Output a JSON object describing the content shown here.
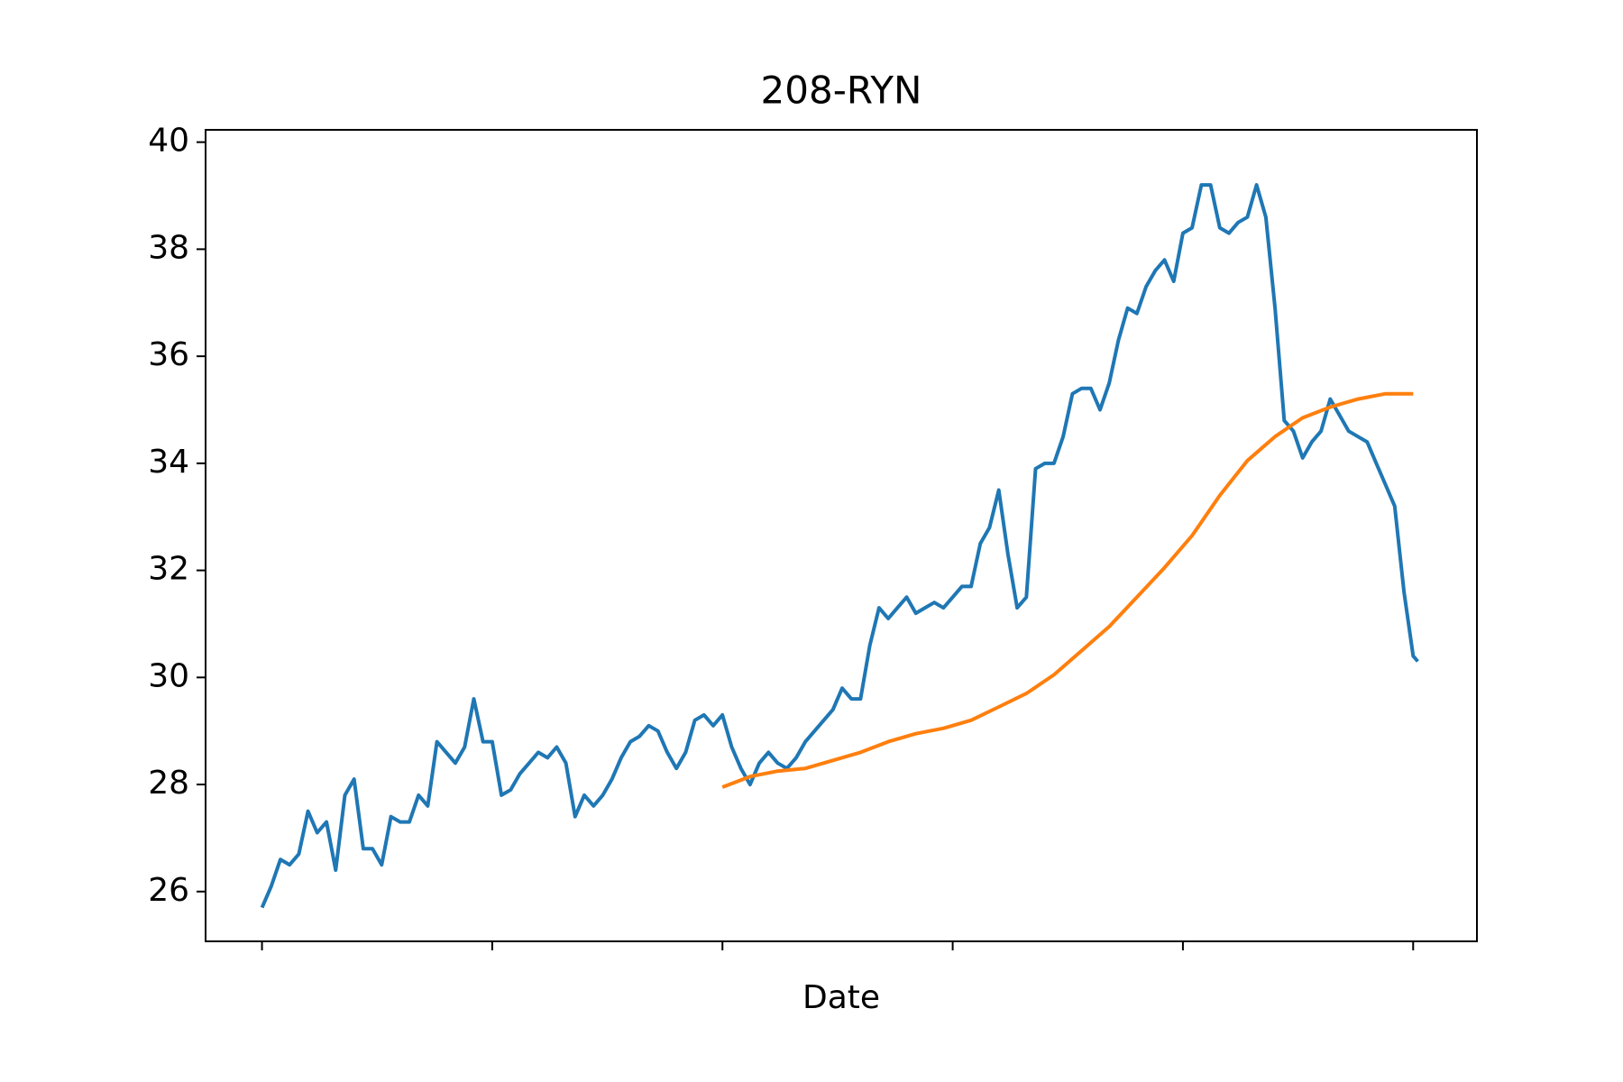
{
  "chart_data": {
    "type": "line",
    "title": "208-RYN",
    "x_label": "Date",
    "xlim": [
      -24.5,
      527.7
    ],
    "xticks": [
      0,
      100,
      200,
      300,
      400,
      500
    ],
    "ylim": [
      25.07,
      40.23
    ],
    "yticks": [
      26,
      28,
      30,
      32,
      34,
      36,
      38,
      40
    ],
    "series": [
      {
        "color": "#1f77b4",
        "x": [
          0,
          4,
          8,
          12,
          16,
          20,
          24,
          28,
          32,
          36,
          40,
          44,
          48,
          52,
          56,
          60,
          64,
          68,
          72,
          76,
          80,
          84,
          88,
          92,
          96,
          100,
          104,
          108,
          112,
          116,
          120,
          124,
          128,
          132,
          136,
          140,
          144,
          148,
          152,
          156,
          160,
          164,
          168,
          172,
          176,
          180,
          184,
          188,
          192,
          196,
          200,
          204,
          208,
          212,
          216,
          220,
          224,
          228,
          232,
          236,
          240,
          244,
          248,
          252,
          256,
          260,
          264,
          268,
          272,
          276,
          280,
          284,
          288,
          292,
          296,
          300,
          304,
          308,
          312,
          316,
          320,
          324,
          328,
          332,
          336,
          340,
          344,
          348,
          352,
          356,
          360,
          364,
          368,
          372,
          376,
          380,
          384,
          388,
          392,
          396,
          400,
          404,
          408,
          412,
          416,
          420,
          424,
          428,
          432,
          436,
          440,
          444,
          448,
          452,
          456,
          460,
          464,
          468,
          472,
          476,
          480,
          484,
          488,
          492,
          496,
          500,
          502
        ],
        "values": [
          25.7,
          26.1,
          26.6,
          26.5,
          26.7,
          27.5,
          27.1,
          27.3,
          26.4,
          27.8,
          28.1,
          26.8,
          26.8,
          26.5,
          27.4,
          27.3,
          27.3,
          27.8,
          27.6,
          28.8,
          28.6,
          28.4,
          28.7,
          29.6,
          28.8,
          28.8,
          27.8,
          27.9,
          28.2,
          28.4,
          28.6,
          28.5,
          28.7,
          28.4,
          27.4,
          27.8,
          27.6,
          27.8,
          28.1,
          28.5,
          28.8,
          28.9,
          29.1,
          29.0,
          28.6,
          28.3,
          28.6,
          29.2,
          29.3,
          29.1,
          29.3,
          28.7,
          28.3,
          28.0,
          28.4,
          28.6,
          28.4,
          28.3,
          28.5,
          28.8,
          29.0,
          29.2,
          29.4,
          29.8,
          29.6,
          29.6,
          30.6,
          31.3,
          31.1,
          31.3,
          31.5,
          31.2,
          31.3,
          31.4,
          31.3,
          31.5,
          31.7,
          31.7,
          32.5,
          32.8,
          33.5,
          32.3,
          31.3,
          31.5,
          33.9,
          34.0,
          34.0,
          34.5,
          35.3,
          35.4,
          35.4,
          35.0,
          35.5,
          36.3,
          36.9,
          36.8,
          37.3,
          37.6,
          37.8,
          37.4,
          38.3,
          38.4,
          39.2,
          39.2,
          38.4,
          38.3,
          38.5,
          38.6,
          39.2,
          38.6,
          36.9,
          34.8,
          34.6,
          34.1,
          34.4,
          34.6,
          35.2,
          34.9,
          34.6,
          34.5,
          34.4,
          34.0,
          33.6,
          33.2,
          31.6,
          30.4,
          30.3
        ]
      },
      {
        "color": "#ff7f0e",
        "x": [
          200,
          212,
          224,
          236,
          248,
          260,
          272,
          284,
          296,
          308,
          320,
          332,
          344,
          356,
          368,
          380,
          392,
          404,
          416,
          428,
          440,
          452,
          464,
          476,
          488,
          500
        ],
        "values": [
          27.95,
          28.15,
          28.25,
          28.3,
          28.45,
          28.6,
          28.8,
          28.95,
          29.05,
          29.2,
          29.45,
          29.7,
          30.05,
          30.5,
          30.95,
          31.5,
          32.05,
          32.65,
          33.4,
          34.05,
          34.5,
          34.85,
          35.05,
          35.2,
          35.3,
          35.3
        ]
      }
    ]
  }
}
